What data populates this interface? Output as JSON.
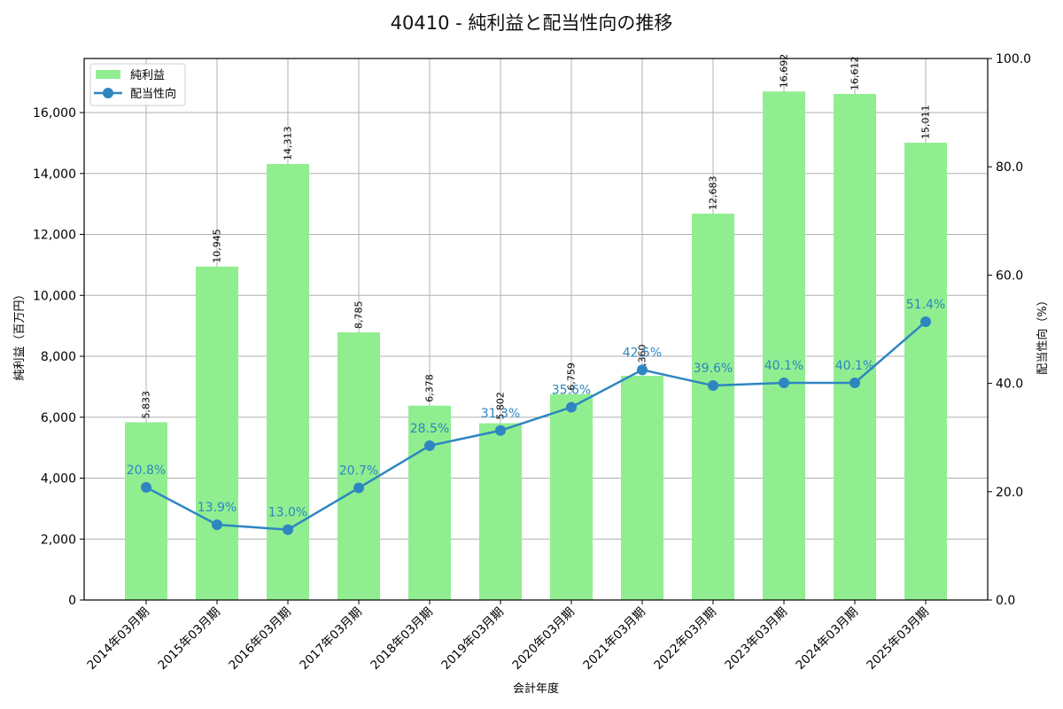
{
  "chart": {
    "title": "40410 - 純利益と配当性向の推移",
    "xlabel": "会計年度",
    "ylabel_left": "純利益（百万円）",
    "ylabel_right": "配当性向（%）",
    "legend": {
      "bar_label": "純利益",
      "line_label": "配当性向"
    },
    "colors": {
      "bar": "#90ee90",
      "line": "#2e86c1",
      "grid": "#b0b0b0",
      "axis": "#000000"
    }
  },
  "chart_data": {
    "type": "bar+line",
    "title": "40410 - 純利益と配当性向の推移",
    "xlabel": "会計年度",
    "ylabel": "純利益（百万円）",
    "y2label": "配当性向（%）",
    "categories": [
      "2014年03月期",
      "2015年03月期",
      "2016年03月期",
      "2017年03月期",
      "2018年03月期",
      "2019年03月期",
      "2020年03月期",
      "2021年03月期",
      "2022年03月期",
      "2023年03月期",
      "2024年03月期",
      "2025年03月期"
    ],
    "series": [
      {
        "name": "純利益",
        "type": "bar",
        "axis": "left",
        "values": [
          5833,
          10945,
          14313,
          8785,
          6378,
          5802,
          6759,
          7360,
          12683,
          16692,
          16612,
          15011
        ],
        "labels": [
          "5,833",
          "10,945",
          "14,313",
          "8,785",
          "6,378",
          "5,802",
          "6,759",
          "7,360",
          "12,683",
          "16,692",
          "16,612",
          "15,011"
        ]
      },
      {
        "name": "配当性向",
        "type": "line",
        "axis": "right",
        "values": [
          20.8,
          13.9,
          13.0,
          20.7,
          28.5,
          31.3,
          35.6,
          42.5,
          39.6,
          40.1,
          40.1,
          51.4
        ],
        "labels": [
          "20.8%",
          "13.9%",
          "13.0%",
          "20.7%",
          "28.5%",
          "31.3%",
          "35.6%",
          "42.5%",
          "39.6%",
          "40.1%",
          "40.1%",
          "51.4%"
        ]
      }
    ],
    "ylim": [
      0,
      17775
    ],
    "y2lim": [
      0,
      100
    ],
    "yticks": [
      0,
      2000,
      4000,
      6000,
      8000,
      10000,
      12000,
      14000,
      16000
    ],
    "ytick_labels": [
      "0",
      "2,000",
      "4,000",
      "6,000",
      "8,000",
      "10,000",
      "12,000",
      "14,000",
      "16,000"
    ],
    "y2ticks": [
      0,
      20,
      40,
      60,
      80,
      100
    ],
    "y2tick_labels": [
      "0.0",
      "20.0",
      "40.0",
      "60.0",
      "80.0",
      "100.0"
    ],
    "grid": true,
    "legend_position": "upper left"
  }
}
